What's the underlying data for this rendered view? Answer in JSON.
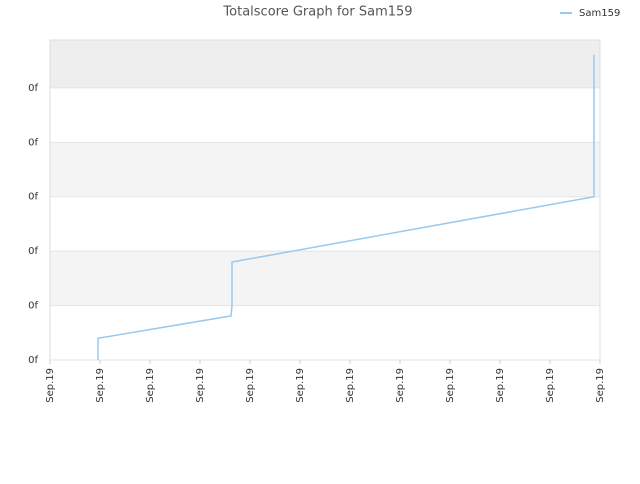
{
  "chart_data": {
    "type": "line",
    "title": "Totalscore Graph for Sam159",
    "series": [
      {
        "name": "Sam159",
        "color": "#99c9ef",
        "x": [
          0.96,
          0.96,
          3.62,
          3.64,
          3.64,
          10.88,
          10.88
        ],
        "values": [
          0,
          0.4,
          0.81,
          1.0,
          1.8,
          3.0,
          5.61
        ]
      }
    ],
    "xlim": [
      0,
      11
    ],
    "xticks": [
      {
        "value": 0,
        "label": "Sep.19"
      },
      {
        "value": 1,
        "label": "Sep.19"
      },
      {
        "value": 2,
        "label": "Sep.19"
      },
      {
        "value": 3,
        "label": "Sep.19"
      },
      {
        "value": 4,
        "label": "Sep.19"
      },
      {
        "value": 5,
        "label": "Sep.19"
      },
      {
        "value": 6,
        "label": "Sep.19"
      },
      {
        "value": 7,
        "label": "Sep.19"
      },
      {
        "value": 8,
        "label": "Sep.19"
      },
      {
        "value": 9,
        "label": "Sep.19"
      },
      {
        "value": 10,
        "label": "Sep.19"
      },
      {
        "value": 11,
        "label": "Sep.19"
      }
    ],
    "ylim": [
      0,
      5.88
    ],
    "yticks": [
      {
        "value": 0,
        "label": "0f"
      },
      {
        "value": 1,
        "label": "0f"
      },
      {
        "value": 2,
        "label": "0f"
      },
      {
        "value": 3,
        "label": "0f"
      },
      {
        "value": 4,
        "label": "0f"
      },
      {
        "value": 5,
        "label": "0f"
      }
    ],
    "grid": true,
    "legend": "top-right"
  }
}
